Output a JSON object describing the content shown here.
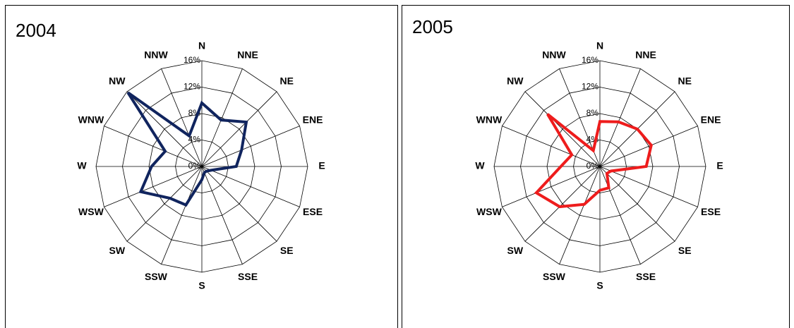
{
  "chart_data": [
    {
      "type": "radar",
      "title": "2004",
      "categories": [
        "N",
        "NNE",
        "NE",
        "ENE",
        "E",
        "ESE",
        "SE",
        "SSE",
        "S",
        "SSW",
        "SW",
        "WSW",
        "W",
        "WNW",
        "NW",
        "NNW"
      ],
      "values": [
        9.6,
        7.6,
        9.5,
        6.5,
        5.2,
        1.5,
        1,
        1,
        2,
        6.3,
        6.8,
        10,
        7.6,
        6,
        15.8,
        5
      ],
      "color": "#10245e",
      "rlim": [
        0,
        16
      ],
      "rticks": [
        {
          "value": 0,
          "label": "0%"
        },
        {
          "value": 4,
          "label": "4%"
        },
        {
          "value": 8,
          "label": "8%"
        },
        {
          "value": 12,
          "label": "12%"
        },
        {
          "value": 16,
          "label": "16%"
        }
      ]
    },
    {
      "type": "radar",
      "title": "2005",
      "categories": [
        "N",
        "NNE",
        "NE",
        "ENE",
        "E",
        "ESE",
        "SE",
        "SSE",
        "S",
        "SSW",
        "SW",
        "WSW",
        "W",
        "WNW",
        "NW",
        "NNW"
      ],
      "values": [
        6.8,
        7.3,
        8,
        8.4,
        7,
        1.8,
        1.5,
        3.5,
        3.6,
        6.2,
        8.6,
        10.4,
        5.9,
        4.6,
        11.2,
        2.6
      ],
      "color": "#ee1c1c",
      "rlim": [
        0,
        16
      ],
      "rticks": [
        {
          "value": 0,
          "label": "0%"
        },
        {
          "value": 4,
          "label": "4%"
        },
        {
          "value": 8,
          "label": "8%"
        },
        {
          "value": 12,
          "label": "12%"
        },
        {
          "value": 16,
          "label": "16%"
        }
      ]
    }
  ]
}
